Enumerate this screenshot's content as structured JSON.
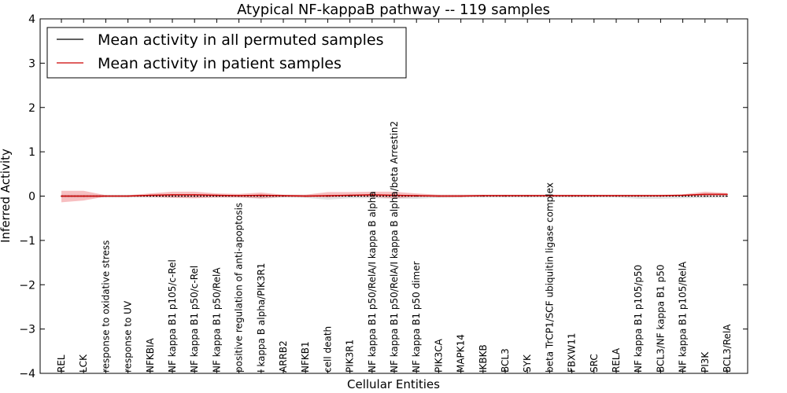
{
  "chart_data": {
    "type": "line",
    "title": "Atypical NF-kappaB pathway -- 119 samples",
    "xlabel": "Cellular Entities",
    "ylabel": "Inferred Activity",
    "ylim": [
      -4,
      4
    ],
    "yticks": [
      "−4",
      "−3",
      "−2",
      "−1",
      "0",
      "1",
      "2",
      "3",
      "4"
    ],
    "yticks_values": [
      -4,
      -3,
      -2,
      -1,
      0,
      1,
      2,
      3,
      4
    ],
    "legend_position": "top-left",
    "categories": [
      "REL",
      "LCK",
      "response to oxidative stress",
      "response to UV",
      "NFKBIA",
      "NF kappa B1 p105/c-Rel",
      "NF kappa B1 p50/c-Rel",
      "NF kappa B1 p50/RelA",
      "positive regulation of anti-apoptosis",
      "I kappa B alpha/PIK3R1",
      "ARRB2",
      "NFKB1",
      "cell death",
      "PIK3R1",
      "NF kappa B1 p50/RelA/I kappa B alpha",
      "NF kappa B1 p50/RelA/I kappa B alpha/beta Arrestin2",
      "NF kappa B1 p50 dimer",
      "PIK3CA",
      "MAPK14",
      "IKBKB",
      "BCL3",
      "SYK",
      "beta TrCP1/SCF ubiquitin ligase complex",
      "FBXW11",
      "SRC",
      "RELA",
      "NF kappa B1 p105/p50",
      "BCL3/NF kappa B1 p50",
      "NF kappa B1 p105/RelA",
      "PI3K",
      "BCL3/RelA"
    ],
    "series": [
      {
        "name": "Mean activity in all permuted samples",
        "color": "#000000",
        "values": [
          0,
          0,
          0,
          0,
          0,
          0,
          0,
          0,
          0,
          0,
          0,
          0,
          0,
          0,
          0,
          0,
          0,
          0,
          0,
          0,
          0,
          0,
          0,
          0,
          0,
          0,
          0,
          0,
          0,
          0,
          0
        ],
        "band_upper": [
          0.03,
          0.03,
          0.03,
          0.03,
          0.03,
          0.03,
          0.03,
          0.03,
          0.03,
          0.03,
          0.03,
          0.03,
          0.03,
          0.03,
          0.03,
          0.03,
          0.03,
          0.03,
          0.03,
          0.03,
          0.03,
          0.03,
          0.03,
          0.03,
          0.03,
          0.03,
          0.03,
          0.03,
          0.03,
          0.03,
          0.03
        ],
        "band_lower": [
          -0.03,
          -0.03,
          -0.03,
          -0.03,
          -0.03,
          -0.03,
          -0.03,
          -0.03,
          -0.03,
          -0.06,
          -0.03,
          -0.04,
          -0.08,
          -0.05,
          -0.05,
          -0.06,
          -0.06,
          -0.04,
          -0.03,
          -0.03,
          -0.03,
          -0.03,
          -0.03,
          -0.03,
          -0.03,
          -0.03,
          -0.06,
          -0.06,
          -0.05,
          -0.04,
          -0.03
        ]
      },
      {
        "name": "Mean activity in patient samples",
        "color": "#cc0000",
        "values": [
          0.0,
          0.0,
          0.0,
          0.0,
          0.02,
          0.03,
          0.03,
          0.02,
          0.01,
          0.02,
          0.01,
          0.0,
          0.01,
          0.02,
          0.03,
          0.02,
          0.01,
          0.0,
          0.0,
          0.01,
          0.01,
          0.01,
          0.01,
          0.01,
          0.01,
          0.01,
          0.01,
          0.01,
          0.02,
          0.04,
          0.04
        ],
        "band_upper": [
          0.12,
          0.12,
          0.02,
          0.02,
          0.06,
          0.1,
          0.1,
          0.06,
          0.05,
          0.08,
          0.03,
          0.03,
          0.09,
          0.09,
          0.1,
          0.1,
          0.06,
          0.03,
          0.03,
          0.03,
          0.03,
          0.03,
          0.03,
          0.03,
          0.03,
          0.03,
          0.03,
          0.03,
          0.04,
          0.1,
          0.07
        ],
        "band_lower": [
          -0.14,
          -0.1,
          -0.01,
          -0.01,
          -0.02,
          -0.04,
          -0.05,
          -0.03,
          -0.03,
          -0.05,
          -0.02,
          -0.02,
          -0.03,
          -0.01,
          -0.02,
          -0.05,
          -0.02,
          -0.01,
          -0.01,
          -0.01,
          -0.01,
          -0.01,
          -0.01,
          -0.01,
          -0.01,
          -0.01,
          -0.01,
          -0.01,
          0.0,
          0.0,
          0.0
        ]
      }
    ]
  }
}
